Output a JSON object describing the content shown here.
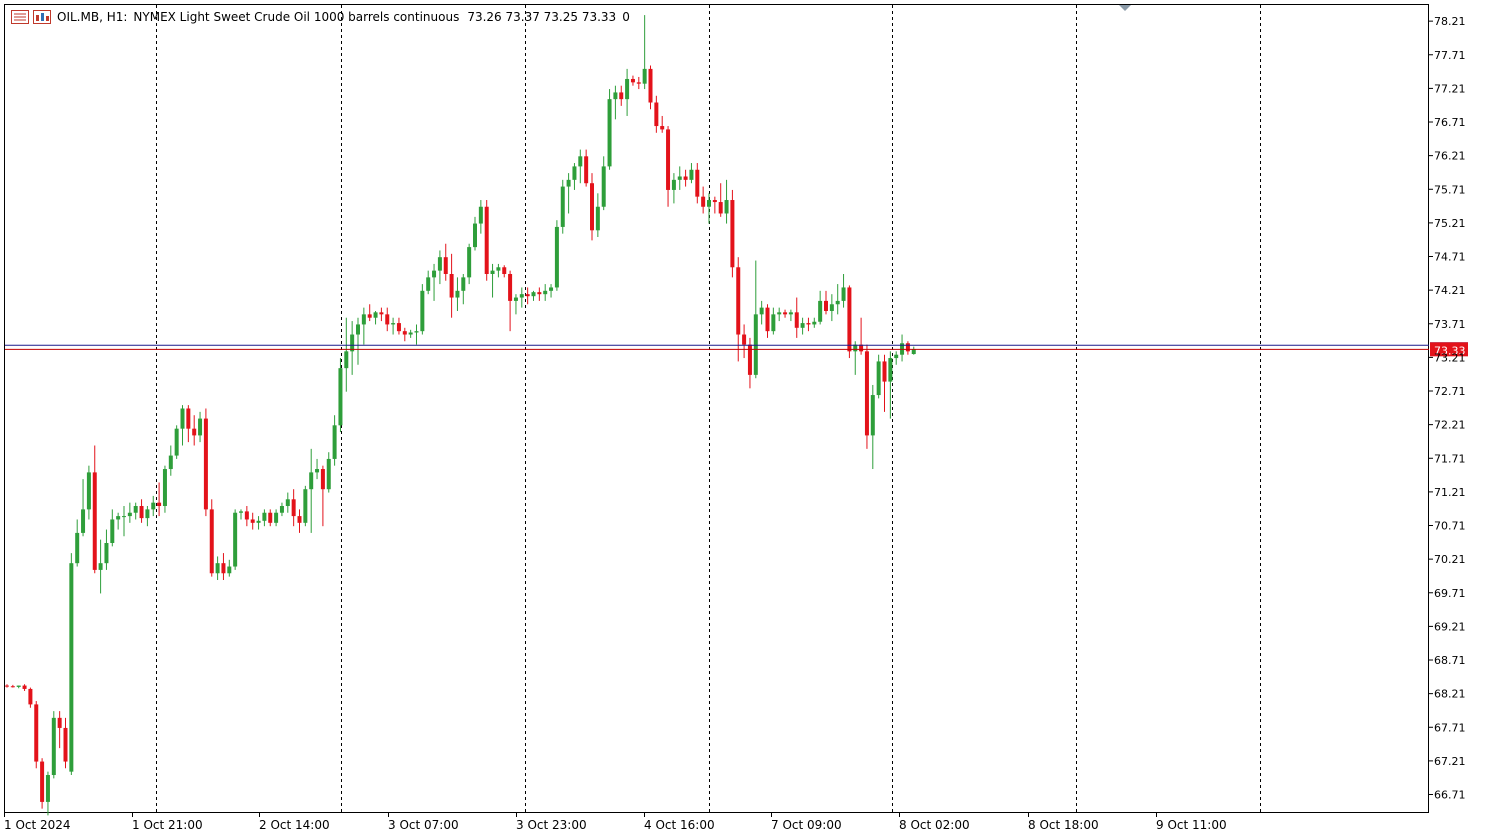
{
  "header": {
    "symbol": "OIL.MB, H1:",
    "description": "NYMEX Light Sweet Crude Oil 1000 barrels continuous",
    "ohlc": "73.26 73.37 73.25 73.33",
    "volume": "0"
  },
  "colors": {
    "up": "#2e9e3a",
    "down": "#e3121a",
    "bid_line": "#c00000",
    "ask_line": "#1a1a8c",
    "price_tag": "#e3121a",
    "grid": "#000000"
  },
  "price_tag": "73.33",
  "chart_data": {
    "type": "candlestick",
    "timeframe": "H1",
    "ylim": [
      66.45,
      78.45
    ],
    "y_ticks": [
      "78.21",
      "77.71",
      "77.21",
      "76.71",
      "76.21",
      "75.71",
      "75.21",
      "74.71",
      "74.21",
      "73.71",
      "73.21",
      "72.71",
      "72.21",
      "71.71",
      "71.21",
      "70.71",
      "70.21",
      "69.71",
      "69.21",
      "68.71",
      "68.21",
      "67.71",
      "67.21",
      "66.71"
    ],
    "x_labels": [
      "1 Oct 2024",
      "1 Oct 21:00",
      "2 Oct 14:00",
      "3 Oct 07:00",
      "3 Oct 23:00",
      "4 Oct 16:00",
      "7 Oct 09:00",
      "8 Oct 02:00",
      "8 Oct 18:00",
      "9 Oct 11:00"
    ],
    "current_price": 73.33,
    "ask_price": 73.39,
    "candles": [
      [
        68.33,
        68.35,
        68.3,
        68.32
      ],
      [
        68.32,
        68.34,
        68.3,
        68.31
      ],
      [
        68.31,
        68.33,
        68.29,
        68.33
      ],
      [
        68.33,
        68.35,
        68.25,
        68.28
      ],
      [
        68.28,
        68.3,
        68.0,
        68.05
      ],
      [
        68.05,
        68.1,
        67.1,
        67.2
      ],
      [
        67.2,
        67.25,
        66.5,
        66.6
      ],
      [
        66.6,
        67.05,
        66.4,
        67.0
      ],
      [
        67.0,
        67.95,
        66.95,
        67.85
      ],
      [
        67.85,
        67.95,
        67.4,
        67.7
      ],
      [
        67.7,
        67.85,
        67.1,
        67.2
      ],
      [
        67.05,
        70.3,
        67.0,
        70.15
      ],
      [
        70.15,
        70.8,
        70.1,
        70.6
      ],
      [
        70.6,
        71.4,
        70.55,
        70.95
      ],
      [
        70.95,
        71.6,
        70.8,
        71.5
      ],
      [
        71.5,
        71.9,
        70.0,
        70.05
      ],
      [
        70.05,
        70.5,
        69.7,
        70.15
      ],
      [
        70.15,
        70.65,
        70.05,
        70.45
      ],
      [
        70.45,
        70.95,
        70.4,
        70.8
      ],
      [
        70.8,
        70.9,
        70.65,
        70.85
      ],
      [
        70.85,
        71.0,
        70.55,
        70.85
      ],
      [
        70.85,
        71.05,
        70.75,
        70.9
      ],
      [
        70.9,
        71.05,
        70.8,
        71.0
      ],
      [
        71.0,
        71.1,
        70.75,
        70.82
      ],
      [
        70.82,
        71.0,
        70.7,
        70.95
      ],
      [
        70.95,
        71.15,
        70.85,
        71.05
      ],
      [
        71.05,
        71.35,
        70.85,
        71.0
      ],
      [
        71.0,
        71.6,
        70.9,
        71.55
      ],
      [
        71.55,
        71.9,
        71.45,
        71.75
      ],
      [
        71.75,
        72.2,
        71.7,
        72.15
      ],
      [
        72.15,
        72.5,
        71.9,
        72.45
      ],
      [
        72.45,
        72.5,
        71.95,
        72.15
      ],
      [
        72.15,
        72.35,
        71.9,
        72.05
      ],
      [
        72.05,
        72.4,
        71.95,
        72.3
      ],
      [
        72.3,
        72.45,
        70.85,
        70.95
      ],
      [
        70.95,
        71.1,
        69.95,
        70.0
      ],
      [
        70.0,
        70.25,
        69.9,
        70.15
      ],
      [
        70.15,
        70.3,
        69.9,
        70.0
      ],
      [
        70.0,
        70.2,
        69.95,
        70.1
      ],
      [
        70.1,
        70.95,
        70.05,
        70.9
      ],
      [
        70.9,
        70.95,
        70.8,
        70.92
      ],
      [
        70.92,
        71.0,
        70.7,
        70.8
      ],
      [
        70.8,
        70.9,
        70.65,
        70.75
      ],
      [
        70.75,
        70.85,
        70.65,
        70.78
      ],
      [
        70.78,
        70.95,
        70.7,
        70.9
      ],
      [
        70.9,
        70.95,
        70.7,
        70.75
      ],
      [
        70.75,
        70.95,
        70.7,
        70.9
      ],
      [
        70.9,
        71.05,
        70.85,
        71.0
      ],
      [
        71.0,
        71.2,
        70.9,
        71.1
      ],
      [
        71.1,
        71.25,
        70.7,
        70.85
      ],
      [
        70.85,
        70.95,
        70.6,
        70.75
      ],
      [
        70.75,
        71.3,
        70.7,
        71.25
      ],
      [
        71.25,
        71.85,
        70.6,
        71.5
      ],
      [
        71.5,
        71.7,
        71.4,
        71.55
      ],
      [
        71.55,
        71.6,
        70.7,
        71.25
      ],
      [
        71.25,
        71.8,
        71.2,
        71.7
      ],
      [
        71.7,
        72.35,
        71.6,
        72.2
      ],
      [
        72.2,
        73.2,
        72.1,
        73.05
      ],
      [
        73.05,
        73.8,
        72.7,
        73.3
      ],
      [
        73.3,
        73.75,
        72.95,
        73.55
      ],
      [
        73.55,
        73.8,
        73.1,
        73.7
      ],
      [
        73.7,
        73.95,
        73.4,
        73.85
      ],
      [
        73.85,
        74.0,
        73.75,
        73.8
      ],
      [
        73.8,
        73.9,
        73.7,
        73.88
      ],
      [
        73.88,
        73.95,
        73.75,
        73.85
      ],
      [
        73.85,
        73.95,
        73.6,
        73.7
      ],
      [
        73.7,
        73.8,
        73.55,
        73.72
      ],
      [
        73.72,
        73.8,
        73.55,
        73.6
      ],
      [
        73.6,
        73.65,
        73.45,
        73.55
      ],
      [
        73.55,
        73.62,
        73.5,
        73.58
      ],
      [
        73.58,
        73.7,
        73.4,
        73.6
      ],
      [
        73.6,
        74.3,
        73.55,
        74.2
      ],
      [
        74.2,
        74.5,
        74.15,
        74.4
      ],
      [
        74.4,
        74.6,
        74.05,
        74.5
      ],
      [
        74.5,
        74.8,
        74.3,
        74.7
      ],
      [
        74.7,
        74.9,
        74.35,
        74.45
      ],
      [
        74.45,
        74.75,
        73.8,
        74.1
      ],
      [
        74.1,
        74.4,
        73.9,
        74.2
      ],
      [
        74.2,
        74.45,
        74.0,
        74.4
      ],
      [
        74.4,
        74.9,
        74.3,
        74.85
      ],
      [
        74.85,
        75.3,
        74.8,
        75.2
      ],
      [
        75.2,
        75.55,
        75.05,
        75.45
      ],
      [
        75.45,
        75.55,
        74.35,
        74.45
      ],
      [
        74.45,
        74.6,
        74.1,
        74.5
      ],
      [
        74.5,
        74.6,
        74.4,
        74.55
      ],
      [
        74.55,
        74.58,
        74.4,
        74.45
      ],
      [
        74.45,
        74.5,
        73.6,
        74.05
      ],
      [
        74.05,
        74.15,
        73.85,
        74.1
      ],
      [
        74.1,
        74.25,
        73.95,
        74.15
      ],
      [
        74.15,
        74.25,
        74.0,
        74.12
      ],
      [
        74.12,
        74.2,
        74.05,
        74.18
      ],
      [
        74.18,
        74.25,
        74.05,
        74.15
      ],
      [
        74.15,
        74.3,
        74.05,
        74.2
      ],
      [
        74.2,
        74.3,
        74.1,
        74.25
      ],
      [
        74.25,
        75.25,
        74.2,
        75.15
      ],
      [
        75.15,
        75.85,
        75.05,
        75.75
      ],
      [
        75.75,
        75.95,
        75.35,
        75.85
      ],
      [
        75.85,
        76.1,
        75.7,
        76.05
      ],
      [
        76.05,
        76.3,
        75.8,
        76.2
      ],
      [
        76.2,
        76.3,
        75.75,
        75.8
      ],
      [
        75.8,
        75.95,
        74.95,
        75.1
      ],
      [
        75.1,
        75.65,
        75.0,
        75.45
      ],
      [
        75.45,
        76.2,
        75.4,
        76.05
      ],
      [
        76.05,
        77.2,
        76.0,
        77.05
      ],
      [
        77.05,
        77.25,
        76.75,
        77.15
      ],
      [
        77.15,
        77.25,
        76.95,
        77.05
      ],
      [
        77.05,
        77.5,
        76.8,
        77.35
      ],
      [
        77.35,
        77.4,
        77.25,
        77.3
      ],
      [
        77.3,
        77.38,
        77.2,
        77.28
      ],
      [
        77.28,
        78.3,
        77.2,
        77.5
      ],
      [
        77.5,
        77.55,
        76.9,
        77.0
      ],
      [
        77.0,
        77.1,
        76.55,
        76.65
      ],
      [
        76.65,
        76.8,
        76.55,
        76.6
      ],
      [
        76.6,
        76.65,
        75.45,
        75.7
      ],
      [
        75.7,
        75.95,
        75.5,
        75.85
      ],
      [
        75.85,
        76.05,
        75.7,
        75.9
      ],
      [
        75.9,
        76.0,
        75.75,
        75.85
      ],
      [
        75.85,
        76.1,
        75.8,
        76.0
      ],
      [
        76.0,
        76.1,
        75.5,
        75.6
      ],
      [
        75.6,
        75.75,
        75.35,
        75.45
      ],
      [
        75.45,
        75.65,
        75.2,
        75.55
      ],
      [
        75.55,
        75.6,
        75.35,
        75.52
      ],
      [
        75.52,
        75.8,
        75.3,
        75.35
      ],
      [
        75.35,
        75.85,
        75.2,
        75.55
      ],
      [
        75.55,
        75.7,
        74.4,
        74.55
      ],
      [
        74.55,
        74.7,
        73.15,
        73.55
      ],
      [
        73.55,
        73.7,
        73.2,
        73.4
      ],
      [
        73.4,
        73.5,
        72.75,
        72.95
      ],
      [
        72.95,
        74.65,
        72.9,
        73.85
      ],
      [
        73.85,
        74.05,
        73.7,
        73.95
      ],
      [
        73.95,
        74.0,
        73.5,
        73.6
      ],
      [
        73.6,
        73.95,
        73.55,
        73.85
      ],
      [
        73.85,
        73.95,
        73.75,
        73.88
      ],
      [
        73.88,
        73.92,
        73.8,
        73.85
      ],
      [
        73.85,
        73.92,
        73.75,
        73.88
      ],
      [
        73.88,
        74.1,
        73.5,
        73.65
      ],
      [
        73.65,
        73.8,
        73.55,
        73.72
      ],
      [
        73.72,
        73.8,
        73.6,
        73.7
      ],
      [
        73.7,
        73.8,
        73.65,
        73.74
      ],
      [
        73.74,
        74.2,
        73.7,
        74.05
      ],
      [
        74.05,
        74.2,
        73.85,
        73.9
      ],
      [
        73.9,
        74.15,
        73.75,
        74.0
      ],
      [
        74.0,
        74.3,
        73.85,
        74.05
      ],
      [
        74.05,
        74.45,
        73.95,
        74.25
      ],
      [
        74.25,
        74.28,
        73.2,
        73.3
      ],
      [
        73.3,
        73.45,
        72.95,
        73.4
      ],
      [
        73.4,
        73.8,
        73.25,
        73.3
      ],
      [
        73.3,
        73.4,
        71.85,
        72.05
      ],
      [
        72.05,
        72.8,
        71.55,
        72.65
      ],
      [
        72.65,
        73.25,
        72.6,
        73.15
      ],
      [
        73.15,
        73.25,
        72.4,
        72.85
      ],
      [
        72.85,
        73.3,
        72.3,
        73.2
      ],
      [
        73.2,
        73.3,
        73.1,
        73.25
      ],
      [
        73.25,
        73.55,
        73.15,
        73.42
      ],
      [
        73.42,
        73.45,
        73.25,
        73.3
      ],
      [
        73.26,
        73.37,
        73.25,
        73.33
      ]
    ]
  }
}
